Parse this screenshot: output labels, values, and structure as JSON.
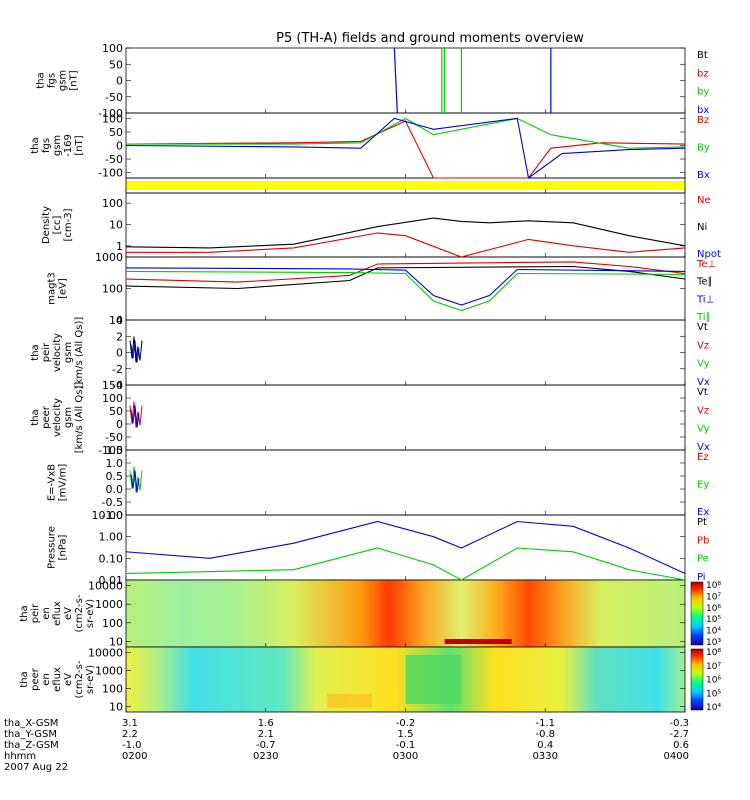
{
  "chart_data": {
    "type": "line",
    "title": "P5 (TH-A) fields and ground moments overview",
    "x_ticks": [
      "0200",
      "0230",
      "0300",
      "0330",
      "0400"
    ],
    "footer": {
      "rows": [
        {
          "label": "tha_X-GSM",
          "values": [
            "3.1",
            "1.6",
            "-0.2",
            "-1.1",
            "-0.3"
          ]
        },
        {
          "label": "tha_Y-GSM",
          "values": [
            "2.2",
            "2.1",
            "1.5",
            "-0.8",
            "-2.7"
          ]
        },
        {
          "label": "tha_Z-GSM",
          "values": [
            "-1.0",
            "-0.7",
            "-0.1",
            "0.4",
            "0.6"
          ]
        },
        {
          "label": "hhmm",
          "values": [
            "0200",
            "0230",
            "0300",
            "0330",
            "0400"
          ]
        }
      ],
      "date": "2007 Aug 22"
    },
    "panels": [
      {
        "id": "fgs",
        "ylabel": [
          "tha",
          "fgs",
          "gsm",
          "[nT]"
        ],
        "ylim": [
          -100,
          100
        ],
        "ticks": [
          "100",
          "50",
          "0",
          "-50",
          "-100"
        ],
        "legend": [
          {
            "text": "Bt",
            "color": "#000000"
          },
          {
            "text": "bz",
            "color": "#e00000"
          },
          {
            "text": "by",
            "color": "#00cc00"
          },
          {
            "text": "bx",
            "color": "#0000e0"
          }
        ]
      },
      {
        "id": "fgs2",
        "ylabel": [
          "tha",
          "fgs",
          "gsm",
          "-169",
          "[nT]"
        ],
        "ylim": [
          -120,
          120
        ],
        "ticks": [
          "100",
          "50",
          "0",
          "-50",
          "-100"
        ],
        "legend": [
          {
            "text": "Bz",
            "color": "#e00000"
          },
          {
            "text": "By",
            "color": "#00cc00"
          },
          {
            "text": "Bx",
            "color": "#0000e0"
          }
        ]
      },
      {
        "id": "flag",
        "ylabel": [],
        "legend": []
      },
      {
        "id": "density",
        "ylabel": [
          "Density",
          "[cc]",
          "[cm-3]"
        ],
        "ylim": [
          0.3,
          300
        ],
        "ticks": [
          "100",
          "10",
          "1"
        ],
        "legend": [
          {
            "text": "Ne",
            "color": "#e00000"
          },
          {
            "text": "Ni",
            "color": "#000000"
          },
          {
            "text": "Npot",
            "color": "#0000e0"
          }
        ]
      },
      {
        "id": "temp",
        "ylabel": [
          "magt3",
          "[eV]"
        ],
        "ylim": [
          10,
          1000
        ],
        "ticks": [
          "1000",
          "100",
          "10"
        ],
        "legend": [
          {
            "text": "Te⊥",
            "color": "#e00000"
          },
          {
            "text": "Te∥",
            "color": "#000000"
          },
          {
            "text": "Ti⊥",
            "color": "#0000e0"
          },
          {
            "text": "Ti∥",
            "color": "#00cc00"
          }
        ]
      },
      {
        "id": "peir",
        "ylabel": [
          "tha",
          "peir",
          "velocity",
          "gsm",
          "[km/s (All Qs)]"
        ],
        "ylim": [
          -4,
          4
        ],
        "ticks": [
          "4",
          "2",
          "0",
          "-2",
          "-4"
        ],
        "legend": [
          {
            "text": "Vt",
            "color": "#000000"
          },
          {
            "text": "Vz",
            "color": "#e00000"
          },
          {
            "text": "Vy",
            "color": "#00cc00"
          },
          {
            "text": "Vx",
            "color": "#0000e0"
          }
        ]
      },
      {
        "id": "peer",
        "ylabel": [
          "tha",
          "peer",
          "velocity",
          "gsm",
          "[km/s (All Qs)]"
        ],
        "ylim": [
          -100,
          150
        ],
        "ticks": [
          "150",
          "100",
          "50",
          "0",
          "-50",
          "-100"
        ],
        "legend": [
          {
            "text": "Vt",
            "color": "#000000"
          },
          {
            "text": "Vz",
            "color": "#e00000"
          },
          {
            "text": "Vy",
            "color": "#00cc00"
          },
          {
            "text": "Vx",
            "color": "#0000e0"
          }
        ]
      },
      {
        "id": "efield",
        "ylabel": [
          "E=-VxB",
          "[mV/m]"
        ],
        "ylim": [
          -1,
          1.5
        ],
        "ticks": [
          "1.5",
          "1.0",
          "0.5",
          "0.0",
          "-0.5",
          "-1.0"
        ],
        "legend": [
          {
            "text": "Ez",
            "color": "#e00000"
          },
          {
            "text": "Ey",
            "color": "#00cc00"
          },
          {
            "text": "Ex",
            "color": "#0000e0"
          }
        ]
      },
      {
        "id": "pressure",
        "ylabel": [
          "Pressure",
          "[nPa]"
        ],
        "ylim": [
          0.01,
          10
        ],
        "ticks": [
          "10.00",
          "1.00",
          "0.10",
          "0.01"
        ],
        "legend": [
          {
            "text": "Pt",
            "color": "#000000"
          },
          {
            "text": "Pb",
            "color": "#e00000"
          },
          {
            "text": "Pe",
            "color": "#00cc00"
          },
          {
            "text": "Pi",
            "color": "#0000e0"
          }
        ]
      },
      {
        "id": "peir_spec",
        "ylabel": [
          "tha",
          "peir",
          "en",
          "eflux",
          "eV",
          "(cm2-s-",
          "sr-eV)"
        ],
        "ylim": [
          5,
          20000
        ],
        "ticks": [
          "10000",
          "1000",
          "100",
          "10"
        ],
        "cbar": [
          "10⁸",
          "10⁷",
          "10⁶",
          "10⁵",
          "10⁴",
          "10³"
        ]
      },
      {
        "id": "peer_spec",
        "ylabel": [
          "tha",
          "peer",
          "en",
          "eflux",
          "eV",
          "(cm2-s-",
          "sr-eV)"
        ],
        "ylim": [
          5,
          20000
        ],
        "ticks": [
          "10000",
          "1000",
          "100",
          "10"
        ],
        "cbar": [
          "10⁸",
          "10⁷",
          "10⁶",
          "10⁵",
          "10⁴"
        ]
      }
    ],
    "series": {
      "ni": [
        [
          0,
          0.9
        ],
        [
          0.15,
          0.8
        ],
        [
          0.3,
          1.2
        ],
        [
          0.45,
          8
        ],
        [
          0.55,
          20
        ],
        [
          0.6,
          14
        ],
        [
          0.65,
          12
        ],
        [
          0.72,
          15
        ],
        [
          0.8,
          12
        ],
        [
          0.9,
          3
        ],
        [
          1,
          1
        ]
      ],
      "ne": [
        [
          0,
          0.5
        ],
        [
          0.15,
          0.5
        ],
        [
          0.3,
          0.8
        ],
        [
          0.45,
          4
        ],
        [
          0.5,
          3
        ],
        [
          0.6,
          0.15
        ],
        [
          0.72,
          2
        ],
        [
          0.8,
          1
        ],
        [
          0.9,
          0.5
        ],
        [
          1,
          0.8
        ]
      ],
      "te_perp": [
        [
          0,
          200
        ],
        [
          0.2,
          160
        ],
        [
          0.4,
          260
        ],
        [
          0.45,
          600
        ],
        [
          0.8,
          700
        ],
        [
          0.9,
          500
        ],
        [
          1,
          300
        ]
      ],
      "te_para": [
        [
          0,
          120
        ],
        [
          0.2,
          100
        ],
        [
          0.4,
          180
        ],
        [
          0.45,
          450
        ],
        [
          0.8,
          500
        ],
        [
          0.9,
          350
        ],
        [
          1,
          200
        ]
      ],
      "ti_perp": [
        [
          0,
          450
        ],
        [
          0.4,
          420
        ],
        [
          0.5,
          380
        ],
        [
          0.55,
          60
        ],
        [
          0.6,
          30
        ],
        [
          0.65,
          60
        ],
        [
          0.7,
          400
        ],
        [
          1,
          350
        ]
      ],
      "ti_para": [
        [
          0,
          350
        ],
        [
          0.4,
          320
        ],
        [
          0.5,
          300
        ],
        [
          0.55,
          40
        ],
        [
          0.6,
          20
        ],
        [
          0.65,
          40
        ],
        [
          0.7,
          300
        ],
        [
          1,
          280
        ]
      ],
      "pi": [
        [
          0,
          0.2
        ],
        [
          0.15,
          0.1
        ],
        [
          0.3,
          0.5
        ],
        [
          0.45,
          5
        ],
        [
          0.55,
          1
        ],
        [
          0.6,
          0.3
        ],
        [
          0.7,
          5
        ],
        [
          0.8,
          3
        ],
        [
          0.9,
          0.3
        ],
        [
          1,
          0.02
        ]
      ],
      "pe": [
        [
          0,
          0.02
        ],
        [
          0.3,
          0.03
        ],
        [
          0.45,
          0.3
        ],
        [
          0.55,
          0.05
        ],
        [
          0.6,
          0.01
        ],
        [
          0.7,
          0.3
        ],
        [
          0.8,
          0.2
        ],
        [
          0.9,
          0.03
        ],
        [
          1,
          0.01
        ]
      ]
    }
  }
}
